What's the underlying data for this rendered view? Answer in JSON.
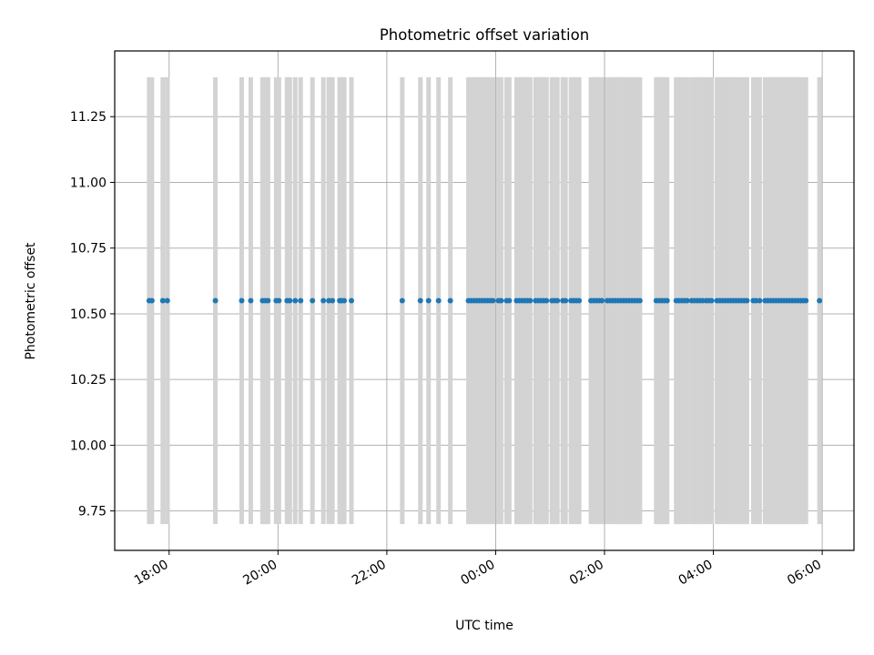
{
  "chart_data": {
    "type": "scatter",
    "title": "Photometric offset variation",
    "xlabel": "UTC time",
    "ylabel": "Photometric offset",
    "x_unit": "UTC time of day (later hours run past midnight)",
    "xlim": [
      "17:00",
      "06:35"
    ],
    "ylim": [
      9.6,
      11.5
    ],
    "x_ticks": [
      "18:00",
      "20:00",
      "22:00",
      "00:00",
      "02:00",
      "04:00",
      "06:00"
    ],
    "y_ticks": [
      9.75,
      10.0,
      10.25,
      10.5,
      10.75,
      11.0,
      11.25
    ],
    "y_tick_labels": [
      "9.75",
      "10.00",
      "10.25",
      "10.50",
      "10.75",
      "11.00",
      "11.25"
    ],
    "grid": true,
    "legend": "none",
    "colors": {
      "points": "#1f77b4",
      "error_bars": "#d3d3d3",
      "grid": "#b0b0b0"
    },
    "error_bar_range": [
      9.7,
      11.4
    ],
    "series": [
      {
        "y_value": 10.55,
        "x": [
          "17:38",
          "17:41",
          "17:53",
          "17:58",
          "18:51",
          "19:20",
          "19:30",
          "19:43",
          "19:46",
          "19:49",
          "19:58",
          "20:01",
          "20:10",
          "20:13",
          "20:19",
          "20:25",
          "20:38",
          "20:50",
          "20:56",
          "21:00",
          "21:08",
          "21:10",
          "21:13",
          "21:21",
          "22:17",
          "22:37",
          "22:46",
          "22:57",
          "23:10",
          "23:30",
          "23:33",
          "23:36",
          "23:39",
          "23:42",
          "23:45",
          "23:48",
          "23:51",
          "23:54",
          "23:57",
          "00:03",
          "00:06",
          "00:12",
          "00:15",
          "00:23",
          "00:26",
          "00:29",
          "00:32",
          "00:35",
          "00:38",
          "00:44",
          "00:47",
          "00:50",
          "00:53",
          "00:56",
          "01:02",
          "01:05",
          "01:08",
          "01:14",
          "01:17",
          "01:23",
          "01:26",
          "01:29",
          "01:32",
          "01:45",
          "01:48",
          "01:51",
          "01:54",
          "01:57",
          "02:03",
          "02:06",
          "02:09",
          "02:12",
          "02:15",
          "02:18",
          "02:21",
          "02:24",
          "02:27",
          "02:30",
          "02:33",
          "02:36",
          "02:39",
          "02:57",
          "03:00",
          "03:03",
          "03:06",
          "03:09",
          "03:19",
          "03:22",
          "03:25",
          "03:28",
          "03:31",
          "03:36",
          "03:39",
          "03:42",
          "03:45",
          "03:48",
          "03:52",
          "03:55",
          "03:58",
          "04:04",
          "04:07",
          "04:10",
          "04:13",
          "04:16",
          "04:19",
          "04:22",
          "04:25",
          "04:28",
          "04:31",
          "04:34",
          "04:37",
          "04:44",
          "04:47",
          "04:51",
          "04:57",
          "05:00",
          "05:03",
          "05:06",
          "05:09",
          "05:12",
          "05:15",
          "05:18",
          "05:21",
          "05:24",
          "05:27",
          "05:30",
          "05:33",
          "05:36",
          "05:39",
          "05:42",
          "05:57"
        ]
      }
    ]
  }
}
